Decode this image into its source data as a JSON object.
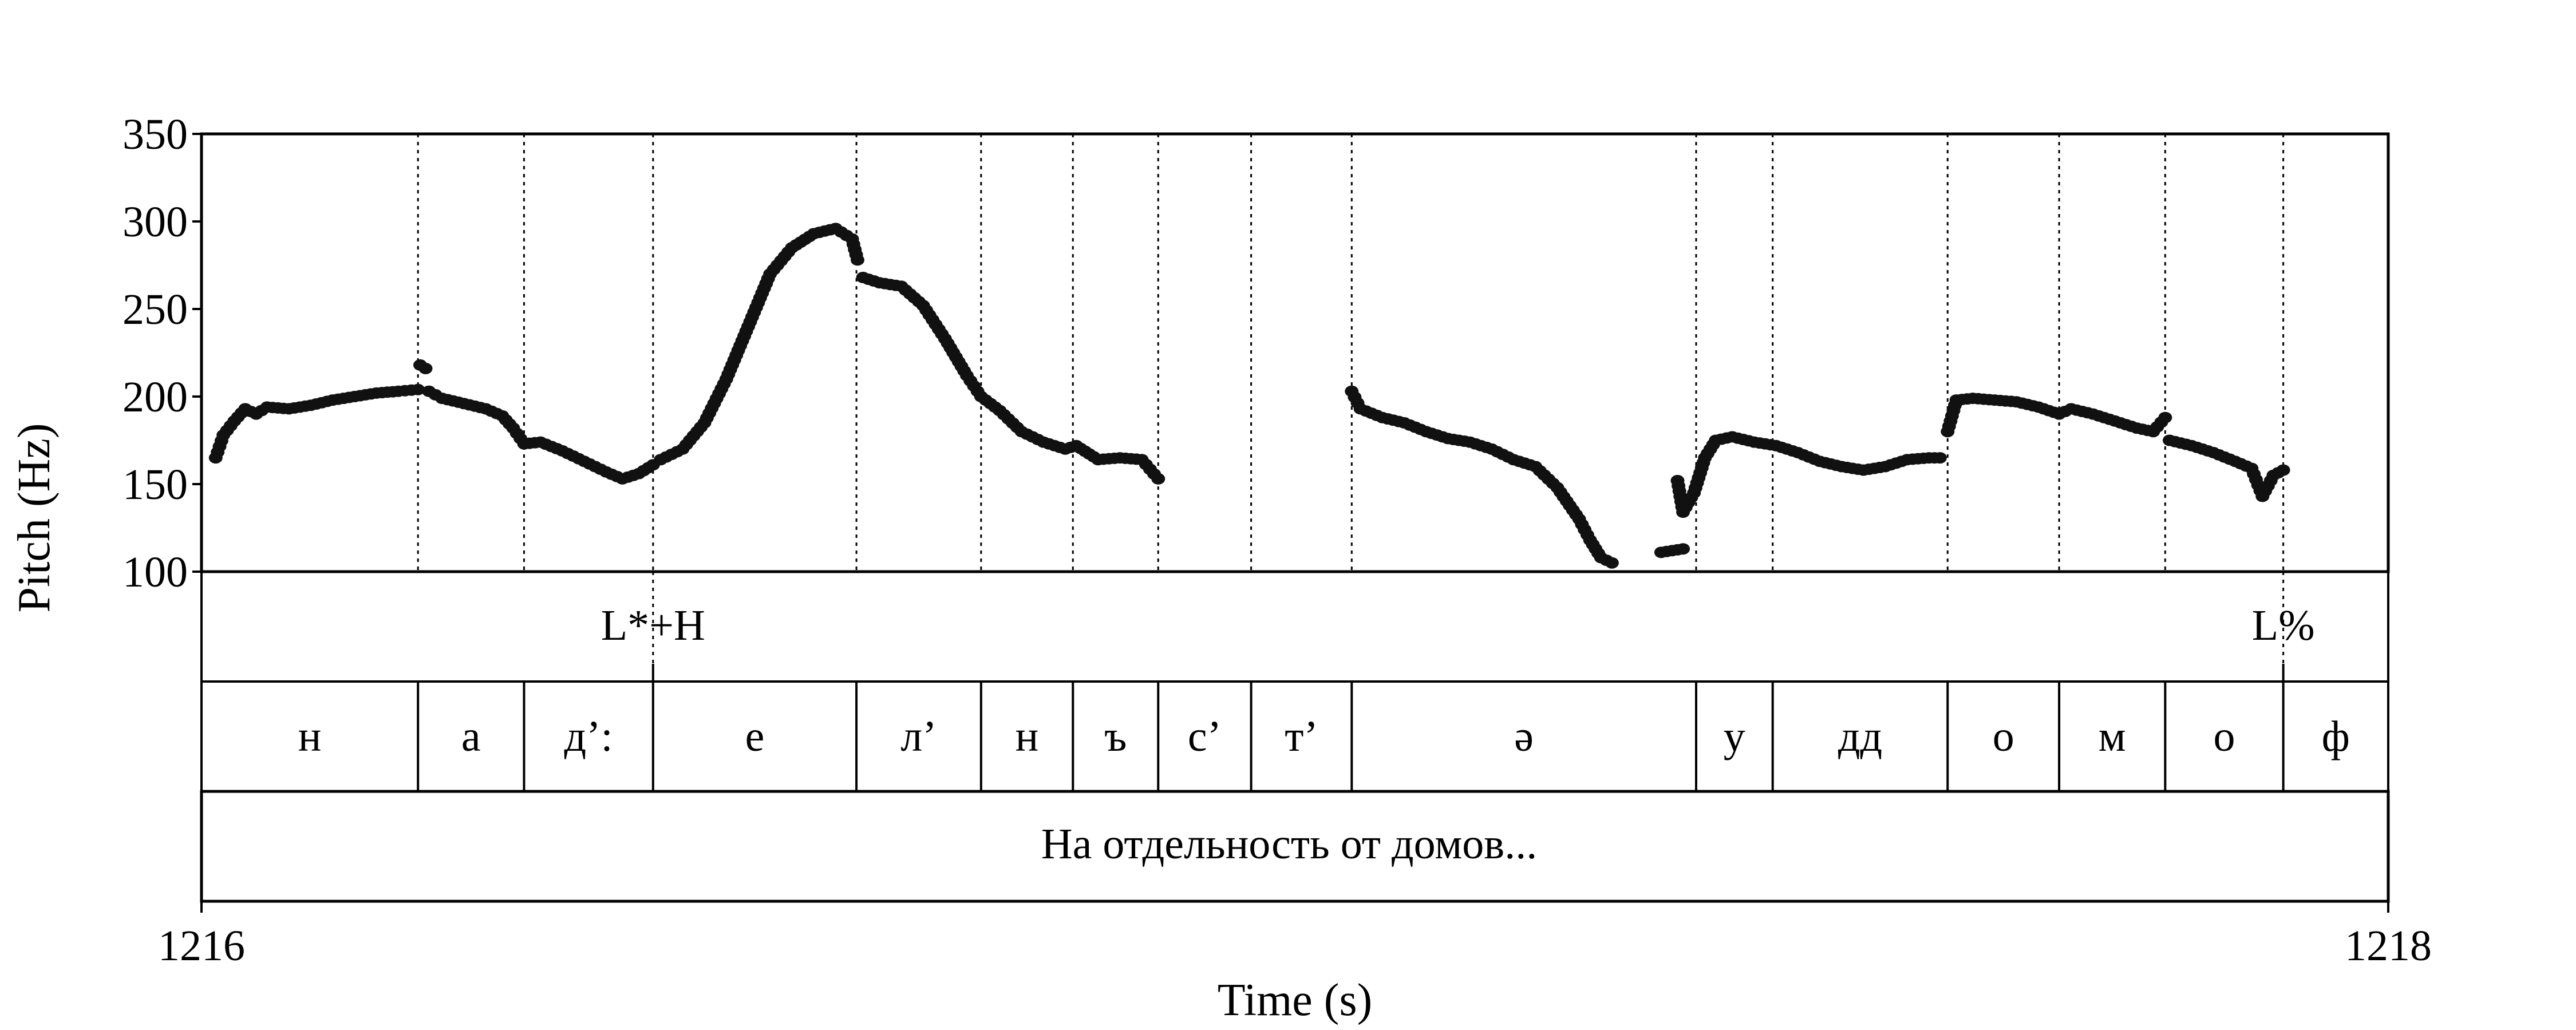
{
  "chart_data": {
    "type": "scatter",
    "xlabel": "Time (s)",
    "ylabel": "Pitch (Hz)",
    "xlim": [
      1216,
      1218
    ],
    "ylim": [
      100,
      350
    ],
    "x_tick_labels": [
      "1216",
      "1218"
    ],
    "y_ticks": [
      100,
      150,
      200,
      250,
      300,
      350
    ],
    "y_tick_labels": [
      "100",
      "150",
      "200",
      "250",
      "300",
      "350"
    ],
    "boundaries": [
      1216.198,
      1216.295,
      1216.413,
      1216.599,
      1216.713,
      1216.797,
      1216.875,
      1216.96,
      1217.052,
      1217.367,
      1217.437,
      1217.597,
      1217.699,
      1217.796,
      1217.904
    ],
    "tones": [
      {
        "label": "L*+H",
        "time": 1216.413
      },
      {
        "label": "L%",
        "time": 1217.904
      }
    ],
    "segments": [
      {
        "label": "н",
        "start": 1216.0,
        "end": 1216.198
      },
      {
        "label": "а",
        "start": 1216.198,
        "end": 1216.295
      },
      {
        "label": "д’:",
        "start": 1216.295,
        "end": 1216.413
      },
      {
        "label": "е",
        "start": 1216.413,
        "end": 1216.599
      },
      {
        "label": "л’",
        "start": 1216.599,
        "end": 1216.713
      },
      {
        "label": "н",
        "start": 1216.713,
        "end": 1216.797
      },
      {
        "label": "ъ",
        "start": 1216.797,
        "end": 1216.875
      },
      {
        "label": "с’",
        "start": 1216.875,
        "end": 1216.96
      },
      {
        "label": "т’",
        "start": 1216.96,
        "end": 1217.052
      },
      {
        "label": "ə",
        "start": 1217.052,
        "end": 1217.367
      },
      {
        "label": "у",
        "start": 1217.367,
        "end": 1217.437
      },
      {
        "label": "дд",
        "start": 1217.437,
        "end": 1217.597
      },
      {
        "label": "о",
        "start": 1217.597,
        "end": 1217.699
      },
      {
        "label": "м",
        "start": 1217.699,
        "end": 1217.796
      },
      {
        "label": "о",
        "start": 1217.796,
        "end": 1217.904
      },
      {
        "label": "ф",
        "start": 1217.904,
        "end": 1218.0
      }
    ],
    "utterance": "На отдельность от домов...",
    "pitch_contour": [
      {
        "x": [
          1216.013,
          1216.02,
          1216.03,
          1216.04,
          1216.05,
          1216.06,
          1216.08,
          1216.1,
          1216.12,
          1216.14,
          1216.16,
          1216.18,
          1216.198
        ],
        "y": [
          165,
          178,
          186,
          193,
          190,
          194,
          193,
          195,
          198,
          200,
          202,
          203,
          204
        ]
      },
      {
        "x": [
          1216.2,
          1216.205
        ],
        "y": [
          218,
          216
        ]
      },
      {
        "x": [
          1216.208,
          1216.22,
          1216.24,
          1216.26,
          1216.275,
          1216.285,
          1216.295,
          1216.31,
          1216.33,
          1216.35,
          1216.37,
          1216.385,
          1216.4,
          1216.413
        ],
        "y": [
          203,
          199,
          196,
          193,
          189,
          182,
          173,
          174,
          169,
          163,
          157,
          153,
          156,
          161
        ]
      },
      {
        "x": [
          1216.42,
          1216.44,
          1216.46,
          1216.48,
          1216.5,
          1216.52,
          1216.54,
          1216.56,
          1216.58,
          1216.595,
          1216.6
        ],
        "y": [
          164,
          170,
          185,
          210,
          240,
          270,
          285,
          293,
          296,
          290,
          278
        ]
      },
      {
        "x": [
          1216.605,
          1216.62,
          1216.64,
          1216.66,
          1216.68,
          1216.7,
          1216.713,
          1216.73,
          1216.75,
          1216.77,
          1216.79,
          1216.8,
          1216.82,
          1216.84,
          1216.86,
          1216.875
        ],
        "y": [
          268,
          265,
          263,
          252,
          233,
          212,
          200,
          192,
          180,
          174,
          170,
          172,
          164,
          165,
          164,
          153
        ]
      },
      {
        "x": [
          1217.052,
          1217.06,
          1217.08,
          1217.1,
          1217.12,
          1217.14,
          1217.16,
          1217.18,
          1217.2,
          1217.22,
          1217.24,
          1217.26,
          1217.27,
          1217.28,
          1217.29
        ],
        "y": [
          203,
          193,
          188,
          185,
          180,
          176,
          174,
          170,
          164,
          160,
          148,
          130,
          118,
          108,
          105
        ]
      },
      {
        "x": [
          1217.335,
          1217.345,
          1217.355
        ],
        "y": [
          111,
          112,
          113
        ]
      },
      {
        "x": [
          1217.35,
          1217.355,
          1217.365,
          1217.375,
          1217.385,
          1217.4,
          1217.42,
          1217.44,
          1217.46,
          1217.48,
          1217.5,
          1217.52,
          1217.54,
          1217.56,
          1217.58,
          1217.59
        ],
        "y": [
          152,
          134,
          145,
          165,
          175,
          177,
          174,
          172,
          168,
          163,
          160,
          158,
          160,
          164,
          165,
          165
        ]
      },
      {
        "x": [
          1217.597,
          1217.605,
          1217.62,
          1217.64,
          1217.66,
          1217.68,
          1217.699,
          1217.71,
          1217.73,
          1217.75,
          1217.77,
          1217.785,
          1217.796
        ],
        "y": [
          180,
          198,
          199,
          198,
          197,
          194,
          190,
          193,
          190,
          186,
          182,
          180,
          188
        ]
      },
      {
        "x": [
          1217.8,
          1217.82,
          1217.84,
          1217.86,
          1217.875,
          1217.885,
          1217.895,
          1217.904
        ],
        "y": [
          175,
          172,
          168,
          163,
          159,
          143,
          155,
          158
        ]
      }
    ]
  }
}
